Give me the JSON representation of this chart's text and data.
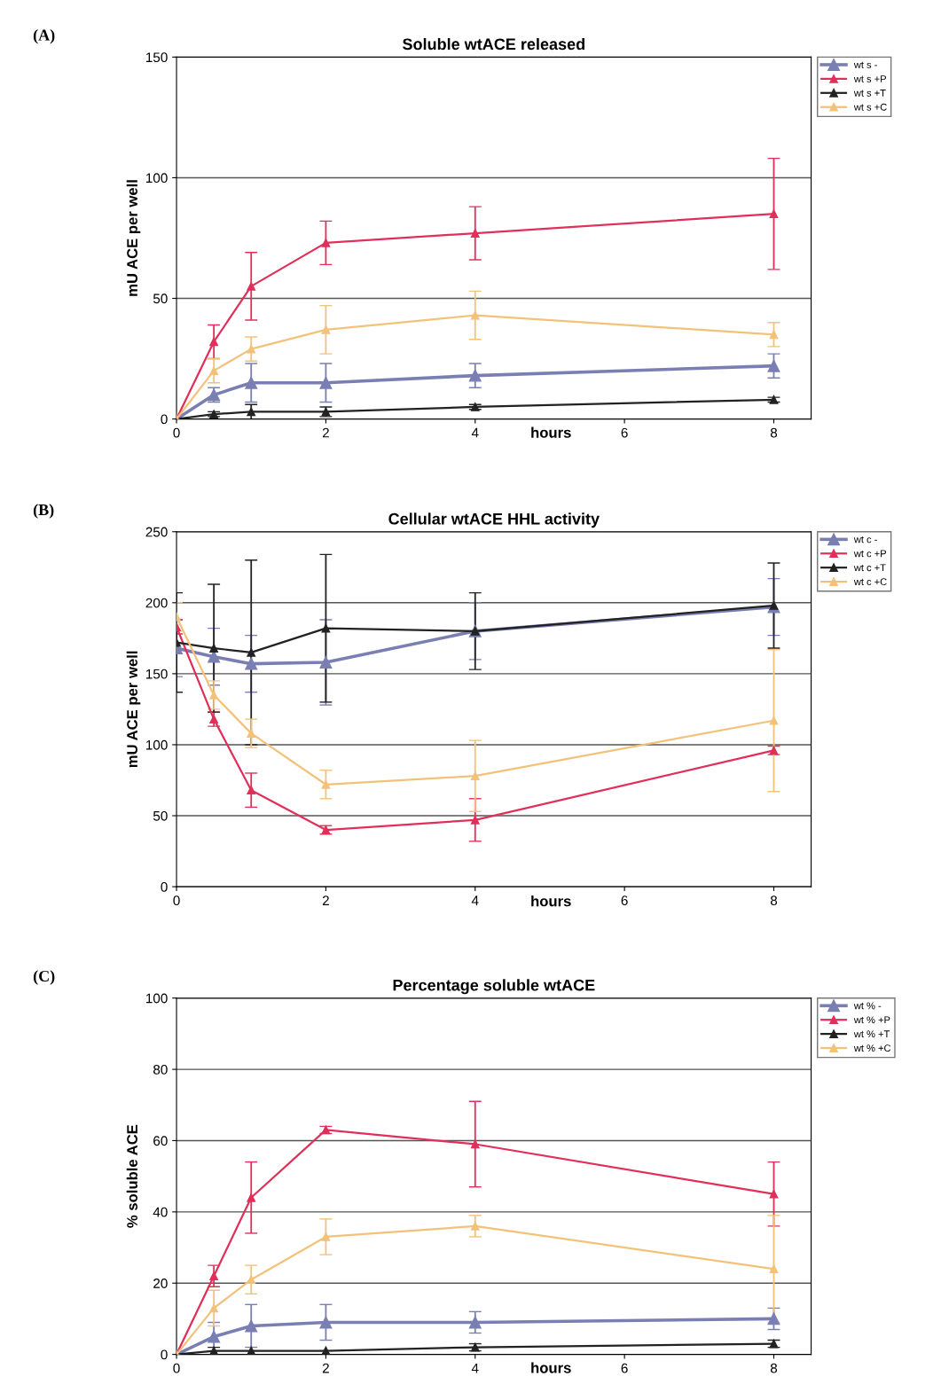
{
  "chart_data": [
    {
      "type": "line",
      "title": "Soluble wtACE released",
      "xlabel": "hours",
      "ylabel": "mU ACE per well",
      "annotations": [
        "(A)"
      ],
      "x": [
        0,
        0.5,
        1,
        2,
        4,
        8
      ],
      "xlim": [
        0,
        8.5
      ],
      "xticks": [
        0,
        2,
        4,
        6,
        8
      ],
      "ylim": [
        0,
        150
      ],
      "yticks": [
        0,
        50,
        100,
        150
      ],
      "grid": "y",
      "legend": "right",
      "marker": "triangle",
      "line_style": "solid",
      "series": [
        {
          "name": "wt s -",
          "color": "#7a7fb3",
          "values": [
            0,
            10,
            15,
            15,
            18,
            22
          ],
          "errors": [
            null,
            3,
            8,
            8,
            5,
            5
          ]
        },
        {
          "name": "wt s +P",
          "color": "#e0305a",
          "values": [
            0,
            32,
            55,
            73,
            77,
            85
          ],
          "errors": [
            null,
            7,
            14,
            9,
            11,
            23
          ]
        },
        {
          "name": "wt s +T",
          "color": "#222222",
          "values": [
            0,
            2,
            3,
            3,
            5,
            8
          ],
          "errors": [
            null,
            1,
            3,
            2,
            1,
            1
          ]
        },
        {
          "name": "wt s +C",
          "color": "#f2c27a",
          "values": [
            0,
            20,
            29,
            37,
            43,
            35
          ],
          "errors": [
            null,
            5,
            5,
            10,
            10,
            5
          ]
        }
      ]
    },
    {
      "type": "line",
      "title": "Cellular wtACE HHL activity",
      "xlabel": "hours",
      "ylabel": "mU ACE per well",
      "annotations": [
        "(B)"
      ],
      "x": [
        0,
        0.5,
        1,
        2,
        4,
        8
      ],
      "xlim": [
        0,
        8.5
      ],
      "xticks": [
        0,
        2,
        4,
        6,
        8
      ],
      "ylim": [
        0,
        250
      ],
      "yticks": [
        0,
        50,
        100,
        150,
        200,
        250
      ],
      "grid": "y",
      "legend": "right",
      "marker": "triangle",
      "line_style": "solid",
      "series": [
        {
          "name": "wt c -",
          "color": "#7a7fb3",
          "values": [
            168,
            162,
            157,
            158,
            180,
            197
          ],
          "errors": [
            20,
            20,
            20,
            30,
            20,
            20
          ]
        },
        {
          "name": "wt c +P",
          "color": "#e0305a",
          "values": [
            183,
            118,
            68,
            40,
            47,
            96
          ],
          "errors": [
            5,
            5,
            12,
            3,
            15,
            3
          ]
        },
        {
          "name": "wt c +T",
          "color": "#222222",
          "values": [
            172,
            168,
            165,
            182,
            180,
            198
          ],
          "errors": [
            35,
            45,
            65,
            52,
            27,
            30
          ]
        },
        {
          "name": "wt c +C",
          "color": "#f2c27a",
          "values": [
            190,
            135,
            108,
            72,
            78,
            117
          ],
          "errors": [
            10,
            10,
            10,
            10,
            25,
            50
          ]
        }
      ]
    },
    {
      "type": "line",
      "title": "Percentage soluble wtACE",
      "xlabel": "hours",
      "ylabel": "% soluble ACE",
      "annotations": [
        "(C)"
      ],
      "x": [
        0,
        0.5,
        1,
        2,
        4,
        8
      ],
      "xlim": [
        0,
        8.5
      ],
      "xticks": [
        0,
        2,
        4,
        6,
        8
      ],
      "ylim": [
        0,
        100
      ],
      "yticks": [
        0,
        20,
        40,
        60,
        80,
        100
      ],
      "grid": "y",
      "legend": "right",
      "marker": "triangle",
      "line_style": "solid",
      "series": [
        {
          "name": "wt % -",
          "color": "#7a7fb3",
          "values": [
            0,
            5,
            8,
            9,
            9,
            10
          ],
          "errors": [
            null,
            4,
            6,
            5,
            3,
            3
          ]
        },
        {
          "name": "wt % +P",
          "color": "#e0305a",
          "values": [
            0,
            22,
            44,
            63,
            59,
            45
          ],
          "errors": [
            null,
            3,
            10,
            1,
            12,
            9
          ]
        },
        {
          "name": "wt % +T",
          "color": "#222222",
          "values": [
            0,
            1,
            1,
            1,
            2,
            3
          ],
          "errors": [
            null,
            1,
            null,
            null,
            1,
            1
          ]
        },
        {
          "name": "wt % +C",
          "color": "#f2c27a",
          "values": [
            0,
            13,
            21,
            33,
            36,
            24
          ],
          "errors": [
            null,
            5,
            4,
            5,
            3,
            15
          ]
        }
      ]
    }
  ]
}
